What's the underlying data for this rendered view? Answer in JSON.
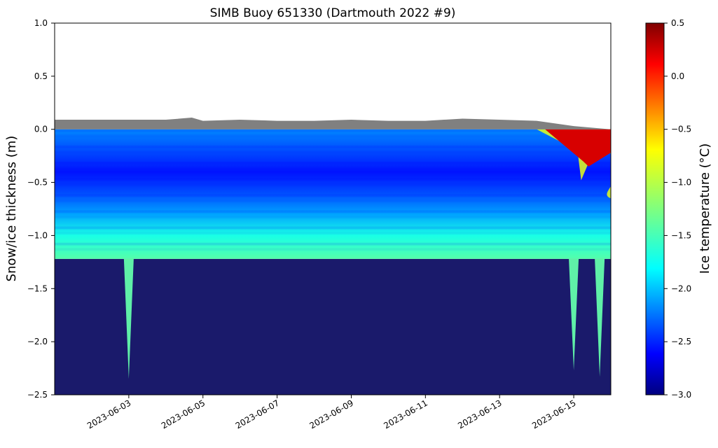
{
  "chart_data": {
    "type": "heatmap",
    "title": "SIMB Buoy 651330 (Dartmouth 2022 #9)",
    "xlabel": "",
    "ylabel": "Snow/ice thickness (m)",
    "x_range": [
      "2023-06-01",
      "2023-06-16"
    ],
    "ylim": [
      -2.5,
      1.0
    ],
    "y_ticks": [
      1.0,
      0.5,
      0.0,
      -0.5,
      -1.0,
      -1.5,
      -2.0,
      -2.5
    ],
    "y_tick_labels": [
      "1.0",
      "0.5",
      "0.0",
      "−0.5",
      "−1.0",
      "−1.5",
      "−2.0",
      "−2.5"
    ],
    "x_tick_labels": [
      "2023-06-03",
      "2023-06-05",
      "2023-06-07",
      "2023-06-09",
      "2023-06-11",
      "2023-06-13",
      "2023-06-15"
    ],
    "colorbar": {
      "label": "Ice temperature (°C)",
      "colormap": "jet",
      "range": [
        -3.0,
        0.5
      ],
      "ticks": [
        0.5,
        0.0,
        -0.5,
        -1.0,
        -1.5,
        -2.0,
        -2.5,
        -3.0
      ],
      "tick_labels": [
        "0.5",
        "0.0",
        "−0.5",
        "−1.0",
        "−1.5",
        "−2.0",
        "−2.5",
        "−3.0"
      ]
    },
    "snow_surface_m": [
      {
        "date": "2023-06-01",
        "value": 0.09
      },
      {
        "date": "2023-06-02",
        "value": 0.09
      },
      {
        "date": "2023-06-03",
        "value": 0.09
      },
      {
        "date": "2023-06-04",
        "value": 0.09
      },
      {
        "date": "2023-06-04.7",
        "value": 0.11
      },
      {
        "date": "2023-06-05",
        "value": 0.08
      },
      {
        "date": "2023-06-06",
        "value": 0.09
      },
      {
        "date": "2023-06-07",
        "value": 0.08
      },
      {
        "date": "2023-06-08",
        "value": 0.08
      },
      {
        "date": "2023-06-09",
        "value": 0.09
      },
      {
        "date": "2023-06-10",
        "value": 0.08
      },
      {
        "date": "2023-06-11",
        "value": 0.08
      },
      {
        "date": "2023-06-12",
        "value": 0.1
      },
      {
        "date": "2023-06-13",
        "value": 0.09
      },
      {
        "date": "2023-06-14",
        "value": 0.08
      },
      {
        "date": "2023-06-15",
        "value": 0.03
      },
      {
        "date": "2023-06-16",
        "value": 0.0
      }
    ],
    "ice_bottom_m": -1.22,
    "ice_temperature_profile": [
      {
        "depth": 0.0,
        "temp": -2.1
      },
      {
        "depth": -0.2,
        "temp": -2.3
      },
      {
        "depth": -0.4,
        "temp": -2.5
      },
      {
        "depth": -0.6,
        "temp": -2.3
      },
      {
        "depth": -0.8,
        "temp": -2.0
      },
      {
        "depth": -1.0,
        "temp": -1.6
      },
      {
        "depth": -1.22,
        "temp": -1.4
      }
    ],
    "melt_onset_date": "2023-06-14",
    "surface_temperature_late": 0.2,
    "ocean_spikes": [
      {
        "date": "2023-06-03",
        "bottom_m": -2.35
      },
      {
        "date": "2023-06-15",
        "bottom_m": -2.27
      },
      {
        "date": "2023-06-15.7",
        "bottom_m": -2.33
      }
    ],
    "colors": {
      "snow": "#808080",
      "ocean": "#1a1a6b",
      "spike": "#5ff0a8"
    }
  }
}
